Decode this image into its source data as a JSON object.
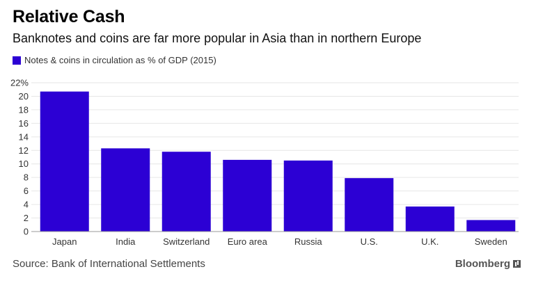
{
  "header": {
    "title": "Relative Cash",
    "subtitle": "Banknotes and coins are far more popular in Asia than in northern Europe"
  },
  "legend": {
    "label": "Notes & coins in circulation as % of GDP (2015)"
  },
  "footer": {
    "source": "Source: Bank of International Settlements",
    "brand": "Bloomberg"
  },
  "colors": {
    "bar": "#2c00d4",
    "grid": "#e6e6e6",
    "axis": "#999999",
    "tick_text": "#333333"
  },
  "chart_data": {
    "type": "bar",
    "categories": [
      "Japan",
      "India",
      "Switzerland",
      "Euro area",
      "Russia",
      "U.S.",
      "U.K.",
      "Sweden"
    ],
    "series": [
      {
        "name": "Notes & coins in circulation as % of GDP (2015)",
        "values": [
          20.7,
          12.3,
          11.8,
          10.6,
          10.5,
          7.9,
          3.7,
          1.7
        ]
      }
    ],
    "ylim": [
      0,
      22
    ],
    "yticks": [
      0,
      2,
      4,
      6,
      8,
      10,
      12,
      14,
      16,
      18,
      20,
      22
    ],
    "ytick_labels": [
      "0",
      "2",
      "4",
      "6",
      "8",
      "10",
      "12",
      "14",
      "16",
      "18",
      "20",
      "22%"
    ],
    "xlabel": "",
    "ylabel": "",
    "grid": true,
    "legend_position": "top-left"
  }
}
